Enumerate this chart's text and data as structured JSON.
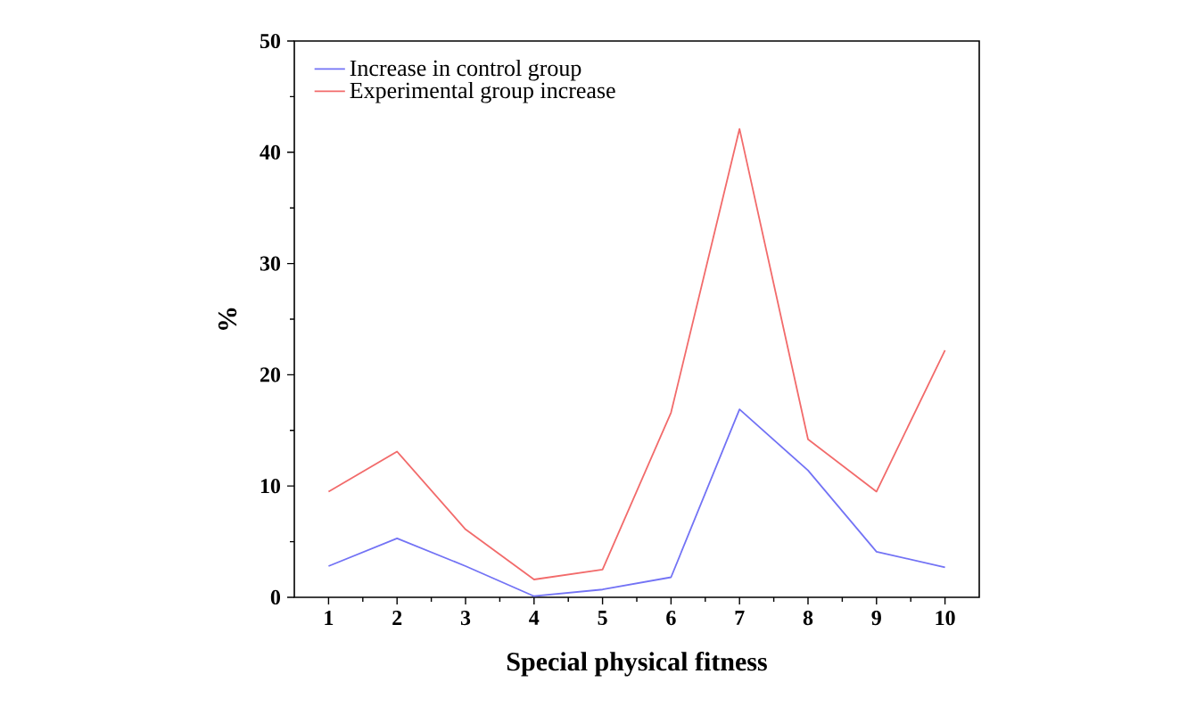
{
  "chart_data": {
    "type": "line",
    "xlabel": "Special physical fitness",
    "ylabel": "%",
    "x": [
      1,
      2,
      3,
      4,
      5,
      6,
      7,
      8,
      9,
      10
    ],
    "series": [
      {
        "name": "Increase in control group",
        "color": "#7373f5",
        "values": [
          2.8,
          5.3,
          2.8,
          0.1,
          0.7,
          1.8,
          16.9,
          11.4,
          4.1,
          2.7
        ]
      },
      {
        "name": "Experimental group increase",
        "color": "#f26b6b",
        "values": [
          9.5,
          13.1,
          6.1,
          1.6,
          2.5,
          16.6,
          42.1,
          14.2,
          9.5,
          22.2
        ]
      }
    ],
    "xlim": [
      0.5,
      10.5
    ],
    "ylim": [
      0,
      50
    ],
    "xticks": [
      1,
      2,
      3,
      4,
      5,
      6,
      7,
      8,
      9,
      10
    ],
    "yticks": [
      0,
      10,
      20,
      30,
      40,
      50
    ],
    "grid": false,
    "legend": "top left",
    "marker": "none",
    "line_style": "solid"
  }
}
